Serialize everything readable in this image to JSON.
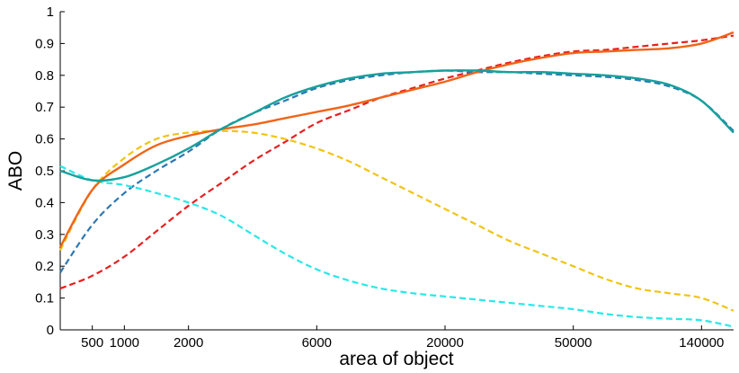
{
  "chart_data": {
    "type": "line",
    "xlabel": "area of object",
    "ylabel": "ABO",
    "categories": [
      null,
      "500",
      "1000",
      null,
      "2000",
      null,
      null,
      null,
      "6000",
      null,
      null,
      null,
      "20000",
      null,
      null,
      null,
      "50000",
      null,
      null,
      null,
      "140000",
      null
    ],
    "ylim": [
      0,
      1
    ],
    "yticks": [
      0,
      0.1,
      0.2,
      0.3,
      0.4,
      0.5,
      0.6,
      0.7,
      0.8,
      0.9,
      1
    ],
    "series": [
      {
        "color": "#e62020",
        "dashed": true,
        "values": [
          0.13,
          0.17,
          0.23,
          0.31,
          0.39,
          0.46,
          0.53,
          0.59,
          0.65,
          0.69,
          0.73,
          0.76,
          0.79,
          0.815,
          0.84,
          0.86,
          0.875,
          0.88,
          0.89,
          0.9,
          0.91,
          0.925
        ]
      },
      {
        "color": "#2c78b4",
        "dashed": true,
        "values": [
          0.18,
          0.33,
          0.43,
          0.5,
          0.56,
          0.63,
          0.68,
          0.72,
          0.76,
          0.785,
          0.8,
          0.81,
          0.815,
          0.81,
          0.81,
          0.805,
          0.8,
          0.795,
          0.785,
          0.765,
          0.72,
          0.625
        ]
      },
      {
        "color": "#f0c414",
        "dashed": true,
        "values": [
          0.25,
          0.44,
          0.54,
          0.6,
          0.62,
          0.625,
          0.62,
          0.6,
          0.57,
          0.53,
          0.48,
          0.43,
          0.38,
          0.33,
          0.28,
          0.24,
          0.2,
          0.16,
          0.13,
          0.115,
          0.1,
          0.06
        ]
      },
      {
        "color": "#28e8e8",
        "dashed": true,
        "values": [
          0.515,
          0.47,
          0.455,
          0.43,
          0.4,
          0.36,
          0.3,
          0.24,
          0.19,
          0.155,
          0.13,
          0.115,
          0.105,
          0.095,
          0.085,
          0.075,
          0.065,
          0.05,
          0.04,
          0.035,
          0.03,
          0.01
        ]
      },
      {
        "color": "#f06418",
        "dashed": false,
        "values": [
          0.26,
          0.44,
          0.52,
          0.58,
          0.61,
          0.63,
          0.645,
          0.665,
          0.685,
          0.705,
          0.73,
          0.755,
          0.78,
          0.81,
          0.835,
          0.855,
          0.87,
          0.875,
          0.88,
          0.885,
          0.9,
          0.935
        ]
      },
      {
        "color": "#18a09c",
        "dashed": false,
        "values": [
          0.5,
          0.47,
          0.48,
          0.52,
          0.57,
          0.63,
          0.68,
          0.73,
          0.765,
          0.79,
          0.805,
          0.81,
          0.815,
          0.815,
          0.81,
          0.81,
          0.805,
          0.8,
          0.79,
          0.77,
          0.72,
          0.62
        ]
      }
    ]
  }
}
